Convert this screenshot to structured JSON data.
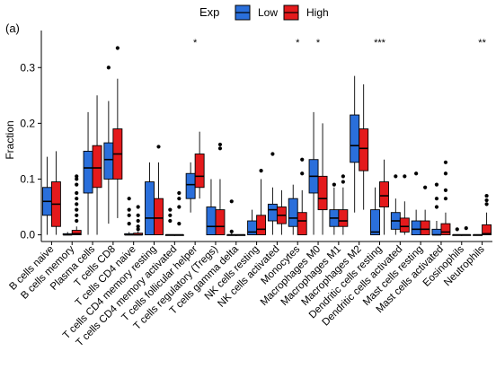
{
  "panel_label": "(a)",
  "legend": {
    "title": "Exp",
    "items": [
      {
        "label": "Low",
        "color": "#2a6fdb"
      },
      {
        "label": "High",
        "color": "#e41a1c"
      }
    ]
  },
  "chart_data": {
    "type": "boxplot",
    "ylabel": "Fraction",
    "xlabel": "",
    "ylim": [
      -0.012,
      0.36
    ],
    "yticks": [
      0.0,
      0.1,
      0.2,
      0.3
    ],
    "ytick_labels": [
      "0.0",
      "0.1",
      "0.2",
      "0.3"
    ],
    "legend_position": "top",
    "series_names": [
      "Low",
      "High"
    ],
    "categories": [
      "B cells naive",
      "B cells memory",
      "Plasma cells",
      "T cells CD8",
      "T cells CD4 naive",
      "T cells CD4 memory resting",
      "T cells CD4 memory activated",
      "T cells follicular helper",
      "T cells regulatory (Tregs)",
      "T cells gamma delta",
      "NK cells resting",
      "NK cells activated",
      "Monocytes",
      "Macrophages M0",
      "Macrophages M1",
      "Macrophages M2",
      "Dendritic cells resting",
      "Dendritic cells activated",
      "Mast cells resting",
      "Mast cells activated",
      "Eosinophils",
      "Neutrophils"
    ],
    "significance": [
      "",
      "",
      "",
      "",
      "",
      "",
      "",
      "*",
      "",
      "",
      "",
      "",
      "*",
      "*",
      "",
      "",
      "***",
      "",
      "",
      "",
      "",
      "**"
    ],
    "boxes": [
      {
        "low": {
          "min": 0.0,
          "q1": 0.035,
          "median": 0.06,
          "q3": 0.085,
          "max": 0.14,
          "outliers": []
        },
        "high": {
          "min": 0.0,
          "q1": 0.015,
          "median": 0.055,
          "q3": 0.095,
          "max": 0.15,
          "outliers": []
        }
      },
      {
        "low": {
          "min": 0.0,
          "q1": 0.0,
          "median": 0.0,
          "q3": 0.002,
          "max": 0.005,
          "outliers": []
        },
        "high": {
          "min": 0.0,
          "q1": 0.0,
          "median": 0.002,
          "q3": 0.008,
          "max": 0.015,
          "outliers": [
            0.025,
            0.035,
            0.045,
            0.055,
            0.065,
            0.075,
            0.09,
            0.1,
            0.105
          ]
        }
      },
      {
        "low": {
          "min": 0.0,
          "q1": 0.075,
          "median": 0.12,
          "q3": 0.15,
          "max": 0.22,
          "outliers": []
        },
        "high": {
          "min": 0.0,
          "q1": 0.085,
          "median": 0.12,
          "q3": 0.16,
          "max": 0.25,
          "outliers": []
        }
      },
      {
        "low": {
          "min": 0.02,
          "q1": 0.1,
          "median": 0.135,
          "q3": 0.165,
          "max": 0.24,
          "outliers": [
            0.3
          ]
        },
        "high": {
          "min": 0.03,
          "q1": 0.1,
          "median": 0.145,
          "q3": 0.19,
          "max": 0.28,
          "outliers": [
            0.335
          ]
        }
      },
      {
        "low": {
          "min": 0.0,
          "q1": 0.0,
          "median": 0.0,
          "q3": 0.002,
          "max": 0.005,
          "outliers": [
            0.02,
            0.035,
            0.045,
            0.065
          ]
        },
        "high": {
          "min": 0.0,
          "q1": 0.0,
          "median": 0.0,
          "q3": 0.003,
          "max": 0.006,
          "outliers": [
            0.01,
            0.015,
            0.025,
            0.035,
            0.05
          ]
        }
      },
      {
        "low": {
          "min": 0.0,
          "q1": 0.0,
          "median": 0.03,
          "q3": 0.095,
          "max": 0.13,
          "outliers": []
        },
        "high": {
          "min": 0.0,
          "q1": 0.0,
          "median": 0.03,
          "q3": 0.065,
          "max": 0.13,
          "outliers": [
            0.158
          ]
        }
      },
      {
        "low": {
          "min": 0.0,
          "q1": 0.0,
          "median": 0.0,
          "q3": 0.0,
          "max": 0.0,
          "outliers": [
            0.025,
            0.035,
            0.045
          ]
        },
        "high": {
          "min": 0.0,
          "q1": 0.0,
          "median": 0.0,
          "q3": 0.0,
          "max": 0.0,
          "outliers": [
            0.02,
            0.05,
            0.065,
            0.075
          ]
        }
      },
      {
        "low": {
          "min": 0.04,
          "q1": 0.065,
          "median": 0.09,
          "q3": 0.11,
          "max": 0.13,
          "outliers": []
        },
        "high": {
          "min": 0.065,
          "q1": 0.085,
          "median": 0.105,
          "q3": 0.145,
          "max": 0.185,
          "outliers": []
        }
      },
      {
        "low": {
          "min": 0.0,
          "q1": 0.0,
          "median": 0.015,
          "q3": 0.05,
          "max": 0.1,
          "outliers": []
        },
        "high": {
          "min": 0.0,
          "q1": 0.0,
          "median": 0.015,
          "q3": 0.045,
          "max": 0.1,
          "outliers": [
            0.155,
            0.162
          ]
        }
      },
      {
        "low": {
          "min": 0.0,
          "q1": 0.0,
          "median": 0.0,
          "q3": 0.0,
          "max": 0.003,
          "outliers": [
            0.006,
            0.06
          ]
        },
        "high": {
          "min": 0.0,
          "q1": 0.0,
          "median": 0.0,
          "q3": 0.0,
          "max": 0.0,
          "outliers": []
        }
      },
      {
        "low": {
          "min": 0.0,
          "q1": 0.0,
          "median": 0.005,
          "q3": 0.025,
          "max": 0.045,
          "outliers": []
        },
        "high": {
          "min": 0.0,
          "q1": 0.0,
          "median": 0.01,
          "q3": 0.035,
          "max": 0.1,
          "outliers": [
            0.115
          ]
        }
      },
      {
        "low": {
          "min": 0.0,
          "q1": 0.025,
          "median": 0.045,
          "q3": 0.055,
          "max": 0.085,
          "outliers": [
            0.145
          ]
        },
        "high": {
          "min": 0.0,
          "q1": 0.02,
          "median": 0.035,
          "q3": 0.05,
          "max": 0.08,
          "outliers": []
        }
      },
      {
        "low": {
          "min": 0.0,
          "q1": 0.015,
          "median": 0.03,
          "q3": 0.065,
          "max": 0.09,
          "outliers": []
        },
        "high": {
          "min": 0.0,
          "q1": 0.0,
          "median": 0.025,
          "q3": 0.04,
          "max": 0.08,
          "outliers": [
            0.11,
            0.135
          ]
        }
      },
      {
        "low": {
          "min": 0.0,
          "q1": 0.075,
          "median": 0.105,
          "q3": 0.135,
          "max": 0.22,
          "outliers": []
        },
        "high": {
          "min": 0.0,
          "q1": 0.045,
          "median": 0.065,
          "q3": 0.105,
          "max": 0.2,
          "outliers": []
        }
      },
      {
        "low": {
          "min": 0.0,
          "q1": 0.015,
          "median": 0.03,
          "q3": 0.045,
          "max": 0.085,
          "outliers": [
            0.09
          ]
        },
        "high": {
          "min": 0.0,
          "q1": 0.015,
          "median": 0.025,
          "q3": 0.045,
          "max": 0.085,
          "outliers": [
            0.095,
            0.105
          ]
        }
      },
      {
        "low": {
          "min": 0.04,
          "q1": 0.13,
          "median": 0.16,
          "q3": 0.215,
          "max": 0.285,
          "outliers": []
        },
        "high": {
          "min": 0.045,
          "q1": 0.115,
          "median": 0.155,
          "q3": 0.19,
          "max": 0.27,
          "outliers": []
        }
      },
      {
        "low": {
          "min": 0.0,
          "q1": 0.0,
          "median": 0.005,
          "q3": 0.045,
          "max": 0.085,
          "outliers": []
        },
        "high": {
          "min": 0.0,
          "q1": 0.05,
          "median": 0.07,
          "q3": 0.095,
          "max": 0.135,
          "outliers": []
        }
      },
      {
        "low": {
          "min": 0.0,
          "q1": 0.01,
          "median": 0.025,
          "q3": 0.04,
          "max": 0.065,
          "outliers": [
            0.105
          ]
        },
        "high": {
          "min": 0.0,
          "q1": 0.005,
          "median": 0.015,
          "q3": 0.03,
          "max": 0.06,
          "outliers": [
            0.105
          ]
        }
      },
      {
        "low": {
          "min": 0.0,
          "q1": 0.0,
          "median": 0.01,
          "q3": 0.025,
          "max": 0.045,
          "outliers": [
            0.11
          ]
        },
        "high": {
          "min": 0.0,
          "q1": 0.0,
          "median": 0.01,
          "q3": 0.025,
          "max": 0.045,
          "outliers": [
            0.085
          ]
        }
      },
      {
        "low": {
          "min": 0.0,
          "q1": 0.0,
          "median": 0.0,
          "q3": 0.01,
          "max": 0.025,
          "outliers": [
            0.05,
            0.065,
            0.09
          ]
        },
        "high": {
          "min": 0.0,
          "q1": 0.0,
          "median": 0.005,
          "q3": 0.02,
          "max": 0.04,
          "outliers": [
            0.065,
            0.08,
            0.11,
            0.13
          ]
        }
      },
      {
        "low": {
          "min": 0.0,
          "q1": 0.0,
          "median": 0.0,
          "q3": 0.0,
          "max": 0.0,
          "outliers": [
            0.01
          ]
        },
        "high": {
          "min": 0.0,
          "q1": 0.0,
          "median": 0.0,
          "q3": 0.0,
          "max": 0.0,
          "outliers": [
            0.012
          ]
        }
      },
      {
        "low": {
          "min": 0.0,
          "q1": 0.0,
          "median": 0.0,
          "q3": 0.0,
          "max": 0.0,
          "outliers": []
        },
        "high": {
          "min": 0.0,
          "q1": 0.0,
          "median": 0.002,
          "q3": 0.018,
          "max": 0.04,
          "outliers": [
            0.055,
            0.062,
            0.07
          ]
        }
      }
    ]
  }
}
